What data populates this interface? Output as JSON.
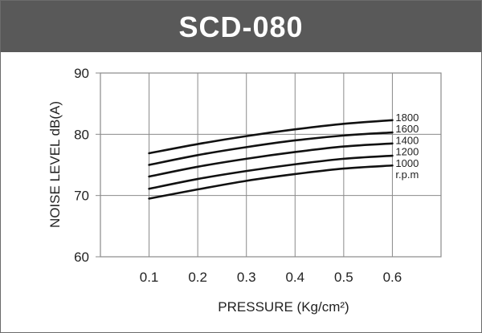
{
  "chart_data": {
    "type": "line",
    "title": "SCD-080",
    "xlabel": "PRESSURE  (Kg/cm²)",
    "ylabel": "NOISE LEVEL dB(A)",
    "xlim": [
      0,
      0.7
    ],
    "ylim": [
      60,
      90
    ],
    "x_ticks": [
      "0.1",
      "0.2",
      "0.3",
      "0.4",
      "0.5",
      "0.6"
    ],
    "y_ticks": [
      "90",
      "80",
      "70",
      "60"
    ],
    "x_tick_values": [
      0.1,
      0.2,
      0.3,
      0.4,
      0.5,
      0.6
    ],
    "y_tick_values": [
      90,
      80,
      70,
      60
    ],
    "grid": true,
    "legend_position": "right",
    "unit_label": "r.p.m",
    "x": [
      0.1,
      0.2,
      0.3,
      0.4,
      0.5,
      0.6
    ],
    "series": [
      {
        "name": "1800",
        "values": [
          76.9,
          78.4,
          79.7,
          80.8,
          81.7,
          82.3
        ]
      },
      {
        "name": "1600",
        "values": [
          75.0,
          76.6,
          77.9,
          79.0,
          79.8,
          80.3
        ]
      },
      {
        "name": "1400",
        "values": [
          73.1,
          74.7,
          76.0,
          77.1,
          78.0,
          78.5
        ]
      },
      {
        "name": "1200",
        "values": [
          71.1,
          72.7,
          74.0,
          75.1,
          76.0,
          76.5
        ]
      },
      {
        "name": "1000",
        "values": [
          69.5,
          71.0,
          72.4,
          73.5,
          74.4,
          74.9
        ]
      }
    ],
    "line_color": "#111111",
    "grid_color": "#8a8a8a"
  },
  "header": {
    "title": "SCD-080",
    "background": "#595959"
  }
}
